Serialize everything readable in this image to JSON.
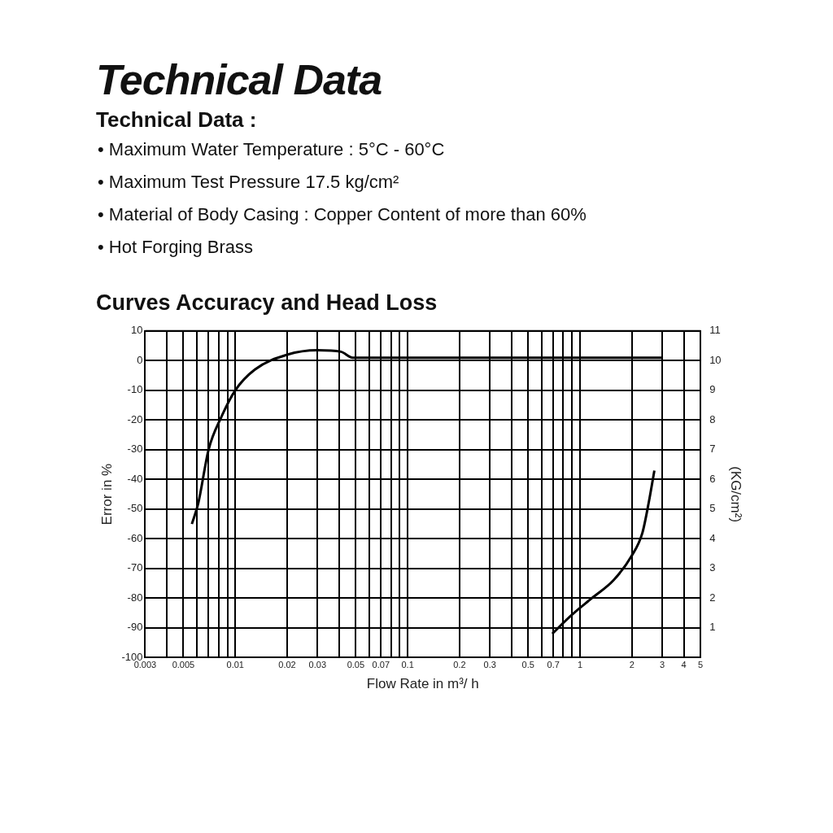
{
  "chart_data": {
    "type": "line",
    "title": "Technical Data",
    "subtitle": "Curves Accuracy and Head Loss",
    "annotations": [
      "Technical Data :",
      "• Maximum Water Temperature : 5°C - 60°C",
      "• Maximum Test Pressure 17.5 kg/cm²",
      "• Material of Body Casing : Copper Content of more than 60%",
      "• Hot Forging Brass"
    ],
    "xlabel": "Flow Rate in m³/ h",
    "ylabel": "Error in %",
    "y2label": "(KG/cm²)",
    "log": "x",
    "grid": true,
    "legend": false,
    "marker": "none",
    "line_style": "solid",
    "xlim": [
      0.003,
      5
    ],
    "xticks": [
      0.003,
      {
        "value": 0.004,
        "label": null
      },
      0.005,
      {
        "value": 0.006,
        "label": null
      },
      {
        "value": 0.007,
        "label": null
      },
      {
        "value": 0.008,
        "label": null
      },
      {
        "value": 0.009,
        "label": null
      },
      0.01,
      0.02,
      0.03,
      {
        "value": 0.04,
        "label": null
      },
      0.05,
      {
        "value": 0.06,
        "label": null
      },
      0.07,
      {
        "value": 0.08,
        "label": null
      },
      {
        "value": 0.09,
        "label": null
      },
      0.1,
      0.2,
      0.3,
      {
        "value": 0.4,
        "label": null
      },
      0.5,
      {
        "value": 0.6,
        "label": null
      },
      0.7,
      {
        "value": 0.8,
        "label": null
      },
      {
        "value": 0.9,
        "label": null
      },
      1,
      2,
      3,
      4,
      5
    ],
    "ylim": [
      -100,
      10
    ],
    "yticks": [
      -100,
      -90,
      -80,
      -70,
      -60,
      -50,
      -40,
      -30,
      -20,
      -10,
      0,
      10
    ],
    "y2lim": [
      0,
      11
    ],
    "y2ticks": [
      1,
      2,
      3,
      4,
      5,
      6,
      7,
      8,
      9,
      10,
      11
    ],
    "series": [
      {
        "color": "#000000",
        "x": [
          0.0056,
          0.0061,
          0.007,
          0.0083,
          0.01,
          0.013,
          0.02,
          0.03,
          0.041,
          0.048,
          0.1,
          1,
          3
        ],
        "values": [
          -55,
          -48,
          -30,
          -19,
          -10,
          -3,
          2,
          3.5,
          3,
          1,
          1,
          1,
          1
        ]
      },
      {
        "color": "#000000",
        "axis": "y2",
        "x": [
          0.69,
          0.88,
          1.17,
          1.56,
          1.98,
          2.3,
          2.5,
          2.7
        ],
        "values": [
          0.8,
          1.4,
          2,
          2.6,
          3.4,
          4.2,
          5.2,
          6.3
        ]
      }
    ]
  }
}
